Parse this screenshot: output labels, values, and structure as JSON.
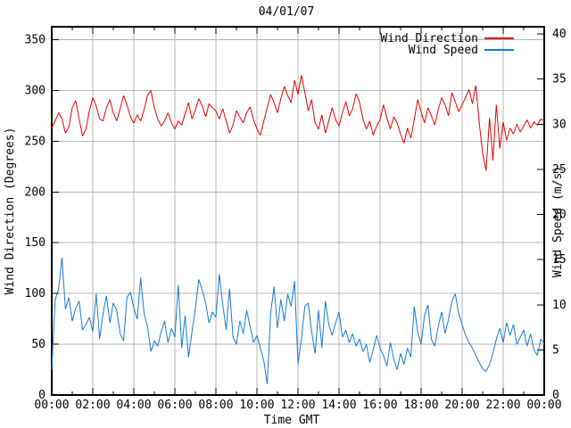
{
  "window": {
    "background": "#ffffff"
  },
  "colors": {
    "wind_direction": "#e60000",
    "wind_speed": "#1778d8",
    "grid": "#b4b4b4",
    "border": "#000000",
    "text": "#000000"
  },
  "chart_data": {
    "type": "line",
    "title": "04/01/07",
    "xlabel": "Time GMT",
    "x_axis": {
      "start_hour": 0,
      "end_hour": 24,
      "major_tick_every_hours": 2,
      "minor_tick_every_hours": 1,
      "tick_labels": [
        "00:00",
        "02:00",
        "04:00",
        "06:00",
        "08:00",
        "10:00",
        "12:00",
        "14:00",
        "16:00",
        "18:00",
        "20:00",
        "22:00",
        "00:00"
      ],
      "grid": true
    },
    "y_axis_left": {
      "label": "Wind Direction (Degrees)",
      "ticks": [
        0,
        50,
        100,
        150,
        200,
        250,
        300,
        350
      ],
      "range": [
        0,
        362.8
      ],
      "grid": true
    },
    "y_axis_right": {
      "label": "Wind Speed (m/s)",
      "ticks": [
        0,
        5,
        10,
        15,
        20,
        25,
        30,
        35,
        40
      ],
      "range": [
        0,
        40.8
      ],
      "grid": false
    },
    "legend": {
      "position": "top-right-inside",
      "entries": [
        "Wind Direction",
        "Wind Speed"
      ]
    },
    "sample_interval_minutes": 10,
    "series": [
      {
        "name": "Wind Direction",
        "axis": "left",
        "unit": "degrees",
        "color": "#e60000",
        "values": [
          263,
          270,
          278,
          272,
          258,
          264,
          283,
          290,
          272,
          255,
          262,
          280,
          293,
          285,
          272,
          270,
          283,
          291,
          278,
          270,
          282,
          295,
          286,
          274,
          268,
          276,
          270,
          281,
          295,
          300,
          283,
          272,
          265,
          270,
          278,
          268,
          262,
          270,
          266,
          277,
          288,
          272,
          281,
          292,
          285,
          274,
          287,
          283,
          280,
          272,
          282,
          270,
          258,
          266,
          280,
          274,
          268,
          278,
          284,
          271,
          262,
          256,
          270,
          283,
          296,
          288,
          278,
          292,
          304,
          295,
          288,
          310,
          296,
          315,
          298,
          280,
          291,
          268,
          262,
          276,
          258,
          270,
          283,
          271,
          265,
          278,
          289,
          275,
          282,
          297,
          288,
          272,
          262,
          270,
          256,
          265,
          271,
          286,
          273,
          262,
          274,
          268,
          257,
          248,
          263,
          253,
          271,
          291,
          279,
          268,
          283,
          275,
          266,
          281,
          293,
          286,
          275,
          298,
          289,
          279,
          286,
          293,
          301,
          287,
          305,
          268,
          238,
          221,
          273,
          231,
          286,
          243,
          269,
          251,
          263,
          257,
          267,
          259,
          265,
          271,
          263,
          269,
          266,
          272,
          270
        ]
      },
      {
        "name": "Wind Speed",
        "axis": "right",
        "unit": "m/s",
        "color": "#1778d8",
        "values": [
          2.8,
          10.5,
          11.8,
          15.2,
          9.5,
          10.8,
          8.2,
          9.6,
          10.4,
          7.2,
          7.8,
          8.6,
          7.0,
          11.2,
          6.2,
          9.0,
          11.0,
          8.0,
          10.2,
          9.4,
          6.8,
          6.0,
          10.8,
          11.4,
          9.6,
          8.4,
          13.0,
          9.0,
          7.6,
          4.8,
          6.0,
          5.4,
          7.0,
          8.2,
          5.8,
          7.4,
          6.4,
          12.2,
          5.2,
          8.8,
          4.2,
          7.0,
          9.6,
          12.8,
          11.6,
          10.2,
          8.0,
          9.2,
          8.6,
          13.4,
          10.0,
          7.2,
          11.8,
          6.4,
          5.6,
          8.2,
          6.8,
          9.4,
          7.6,
          5.8,
          6.6,
          5.2,
          3.8,
          1.2,
          9.0,
          12.0,
          7.4,
          10.6,
          8.2,
          11.2,
          9.8,
          12.6,
          3.4,
          6.2,
          9.8,
          10.2,
          7.0,
          4.6,
          9.4,
          5.2,
          10.4,
          7.8,
          6.6,
          8.0,
          9.2,
          6.4,
          7.2,
          5.8,
          6.8,
          5.4,
          6.2,
          4.8,
          5.6,
          3.6,
          5.0,
          6.6,
          5.2,
          4.4,
          3.2,
          5.8,
          4.0,
          2.8,
          4.6,
          3.4,
          5.2,
          4.2,
          9.8,
          7.0,
          5.6,
          8.8,
          10.0,
          6.2,
          5.4,
          7.6,
          9.2,
          6.8,
          8.4,
          10.4,
          11.2,
          9.0,
          7.8,
          6.6,
          5.8,
          5.2,
          4.4,
          3.6,
          2.9,
          2.6,
          3.4,
          4.6,
          6.2,
          7.4,
          5.8,
          8.0,
          6.6,
          7.8,
          5.6,
          6.4,
          7.2,
          5.4,
          6.8,
          5.0,
          4.4,
          6.2,
          5.7
        ]
      }
    ]
  }
}
